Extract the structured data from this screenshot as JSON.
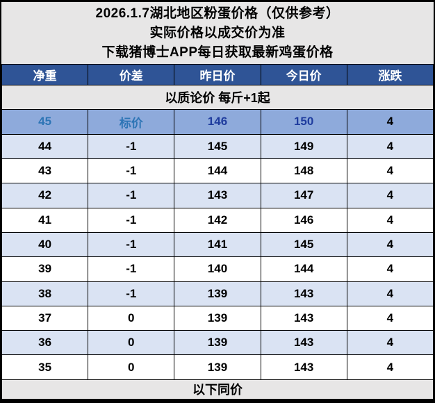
{
  "title": {
    "line1": "2026.1.7湖北地区粉蛋价格（仅供参考）",
    "line2": "实际价格以成交价为准",
    "line3": "下载猪博士APP每日获取最新鸡蛋价格"
  },
  "colors": {
    "frame_border": "#000000",
    "title_band_bg": "#e7e6e6",
    "header_bg": "#2f5496",
    "header_text": "#ffffff",
    "highlight_row_bg": "#8eaadb",
    "highlight_label_blue": "#2e75b6",
    "highlight_price_navy": "#1f3c9e",
    "alt_row_bg": "#dae3f3",
    "plain_row_bg": "#ffffff"
  },
  "table": {
    "columns": [
      "净重",
      "价差",
      "昨日价",
      "今日价",
      "涨跌"
    ],
    "subheader": "以质论价 每斤+1起",
    "footer": "以下同价",
    "rows": [
      {
        "net_weight": "45",
        "diff": "标价",
        "yesterday": "146",
        "today": "150",
        "change": "4"
      },
      {
        "net_weight": "44",
        "diff": "-1",
        "yesterday": "145",
        "today": "149",
        "change": "4"
      },
      {
        "net_weight": "43",
        "diff": "-1",
        "yesterday": "144",
        "today": "148",
        "change": "4"
      },
      {
        "net_weight": "42",
        "diff": "-1",
        "yesterday": "143",
        "today": "147",
        "change": "4"
      },
      {
        "net_weight": "41",
        "diff": "-1",
        "yesterday": "142",
        "today": "146",
        "change": "4"
      },
      {
        "net_weight": "40",
        "diff": "-1",
        "yesterday": "141",
        "today": "145",
        "change": "4"
      },
      {
        "net_weight": "39",
        "diff": "-1",
        "yesterday": "140",
        "today": "144",
        "change": "4"
      },
      {
        "net_weight": "38",
        "diff": "-1",
        "yesterday": "139",
        "today": "143",
        "change": "4"
      },
      {
        "net_weight": "37",
        "diff": "0",
        "yesterday": "139",
        "today": "143",
        "change": "4"
      },
      {
        "net_weight": "36",
        "diff": "0",
        "yesterday": "139",
        "today": "143",
        "change": "4"
      },
      {
        "net_weight": "35",
        "diff": "0",
        "yesterday": "139",
        "today": "143",
        "change": "4"
      }
    ]
  },
  "chart_data": {
    "type": "table",
    "title": "2026.1.7湖北地区粉蛋价格（仅供参考）",
    "columns": [
      "净重",
      "价差",
      "昨日价",
      "今日价",
      "涨跌"
    ],
    "rows": [
      [
        "45",
        "标价",
        "146",
        "150",
        "4"
      ],
      [
        "44",
        "-1",
        "145",
        "149",
        "4"
      ],
      [
        "43",
        "-1",
        "144",
        "148",
        "4"
      ],
      [
        "42",
        "-1",
        "143",
        "147",
        "4"
      ],
      [
        "41",
        "-1",
        "142",
        "146",
        "4"
      ],
      [
        "40",
        "-1",
        "141",
        "145",
        "4"
      ],
      [
        "39",
        "-1",
        "140",
        "144",
        "4"
      ],
      [
        "38",
        "-1",
        "139",
        "143",
        "4"
      ],
      [
        "37",
        "0",
        "139",
        "143",
        "4"
      ],
      [
        "36",
        "0",
        "139",
        "143",
        "4"
      ],
      [
        "35",
        "0",
        "139",
        "143",
        "4"
      ]
    ],
    "annotations": [
      "实际价格以成交价为准",
      "下载猪博士APP每日获取最新鸡蛋价格",
      "以质论价 每斤+1起",
      "以下同价"
    ]
  }
}
